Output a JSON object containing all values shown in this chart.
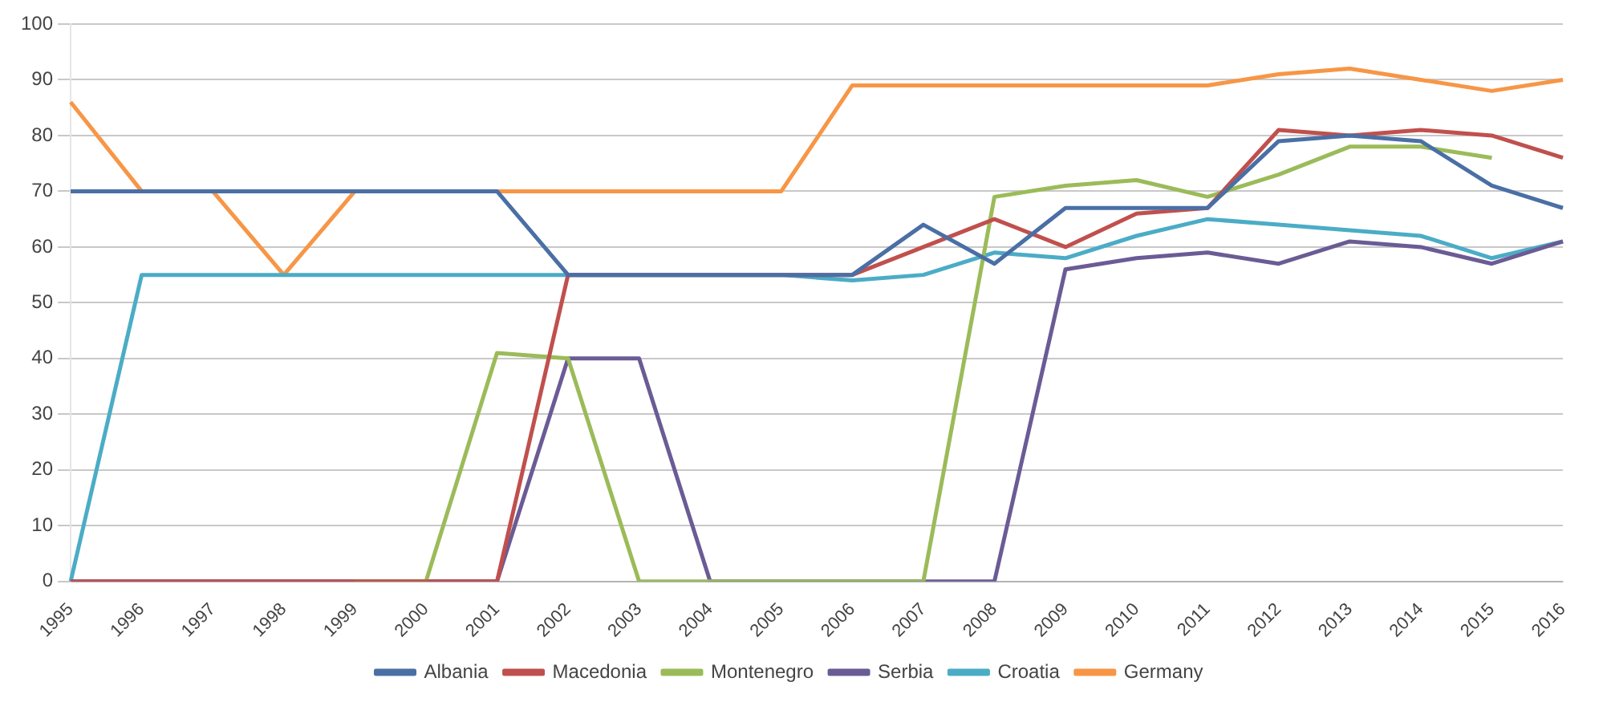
{
  "chart_data": {
    "type": "line",
    "categories": [
      "1995",
      "1996",
      "1997",
      "1998",
      "1999",
      "2000",
      "2001",
      "2002",
      "2003",
      "2004",
      "2005",
      "2006",
      "2007",
      "2008",
      "2009",
      "2010",
      "2011",
      "2012",
      "2013",
      "2014",
      "2015",
      "2016"
    ],
    "series": [
      {
        "name": "Albania",
        "color": "#4a6fa5",
        "values": [
          70,
          70,
          70,
          70,
          70,
          70,
          70,
          55,
          55,
          55,
          55,
          55,
          64,
          57,
          67,
          67,
          67,
          79,
          80,
          79,
          71,
          67
        ]
      },
      {
        "name": "Macedonia",
        "color": "#c0504d",
        "values": [
          0,
          0,
          0,
          0,
          0,
          0,
          0,
          55,
          55,
          55,
          55,
          55,
          60,
          65,
          60,
          66,
          67,
          81,
          80,
          81,
          80,
          76
        ]
      },
      {
        "name": "Montenegro",
        "color": "#9bbb59",
        "values": [
          null,
          null,
          null,
          null,
          0,
          0,
          41,
          40,
          0,
          0,
          0,
          0,
          0,
          69,
          71,
          72,
          69,
          73,
          78,
          78,
          76,
          null
        ]
      },
      {
        "name": "Serbia",
        "color": "#6b5b95",
        "values": [
          0,
          0,
          0,
          0,
          0,
          0,
          0,
          40,
          40,
          0,
          0,
          0,
          0,
          0,
          56,
          58,
          59,
          57,
          61,
          60,
          57,
          61
        ]
      },
      {
        "name": "Croatia",
        "color": "#4bacc6",
        "values": [
          0,
          55,
          55,
          55,
          55,
          55,
          55,
          55,
          55,
          55,
          55,
          54,
          55,
          59,
          58,
          62,
          65,
          64,
          63,
          62,
          58,
          61
        ]
      },
      {
        "name": "Germany",
        "color": "#f79646",
        "values": [
          86,
          70,
          70,
          55,
          70,
          70,
          70,
          70,
          70,
          70,
          70,
          89,
          89,
          89,
          89,
          89,
          89,
          91,
          92,
          90,
          88,
          90
        ]
      }
    ],
    "ylim": [
      0,
      100
    ],
    "yticks": [
      0,
      10,
      20,
      30,
      40,
      50,
      60,
      70,
      80,
      90,
      100
    ],
    "grid": "y",
    "legend": "bottom",
    "marker": "none",
    "line_style": "solid"
  }
}
